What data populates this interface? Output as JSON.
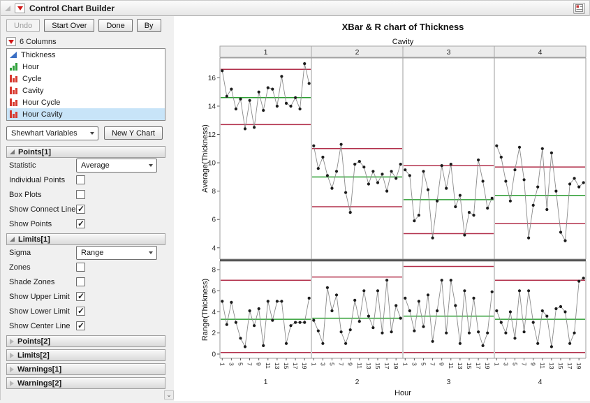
{
  "window": {
    "title": "Control Chart Builder"
  },
  "toolbar": {
    "undo": "Undo",
    "start_over": "Start Over",
    "done": "Done",
    "by": "By"
  },
  "columns_panel": {
    "header": "6 Columns",
    "items": [
      {
        "label": "Thickness",
        "type": "continuous",
        "selected": false
      },
      {
        "label": "Hour",
        "type": "ordinal",
        "selected": false
      },
      {
        "label": "Cycle",
        "type": "nominal",
        "selected": false
      },
      {
        "label": "Cavity",
        "type": "nominal",
        "selected": false
      },
      {
        "label": "Hour Cycle",
        "type": "nominal",
        "selected": false
      },
      {
        "label": "Hour Cavity",
        "type": "nominal",
        "selected": true
      }
    ]
  },
  "controls": {
    "chart_type_dropdown": "Shewhart Variables",
    "new_y_chart_button": "New Y Chart"
  },
  "panels": {
    "points1": {
      "title": "Points[1]",
      "statistic_label": "Statistic",
      "statistic_value": "Average",
      "options": [
        {
          "label": "Individual Points",
          "checked": false
        },
        {
          "label": "Box Plots",
          "checked": false
        },
        {
          "label": "Show Connect Line",
          "checked": true
        },
        {
          "label": "Show Points",
          "checked": true
        }
      ]
    },
    "limits1": {
      "title": "Limits[1]",
      "sigma_label": "Sigma",
      "sigma_value": "Range",
      "options": [
        {
          "label": "Zones",
          "checked": false
        },
        {
          "label": "Shade Zones",
          "checked": false
        },
        {
          "label": "Show Upper Limit",
          "checked": true
        },
        {
          "label": "Show Lower Limit",
          "checked": true
        },
        {
          "label": "Show Center Line",
          "checked": true
        }
      ]
    },
    "collapsed": [
      {
        "title": "Points[2]"
      },
      {
        "title": "Limits[2]"
      },
      {
        "title": "Warnings[1]"
      },
      {
        "title": "Warnings[2]"
      }
    ]
  },
  "chart_data": {
    "type": "line",
    "title": "XBar & R chart of Thickness",
    "group_axis_label": "Cavity",
    "groups": [
      "1",
      "2",
      "3",
      "4"
    ],
    "xlabel": "Hour",
    "x_ticks": [
      1,
      3,
      5,
      7,
      9,
      11,
      13,
      15,
      17,
      19
    ],
    "hours_per_panel": 20,
    "legend": "none",
    "grid": false,
    "colors": {
      "limit": "#b2304b",
      "center": "#2e9e33",
      "point": "#1c1c1c",
      "connect": "#8a8a8a"
    },
    "rows": [
      {
        "ylabel": "Average(Thickness)",
        "ylim": [
          3.2,
          17.4
        ],
        "yticks": [
          4,
          6,
          8,
          10,
          12,
          14,
          16
        ],
        "panels": [
          {
            "group": "1",
            "ucl": 16.6,
            "center": 14.6,
            "lcl": 12.7,
            "values": [
              16.5,
              14.7,
              15.2,
              13.8,
              14.5,
              12.4,
              14.4,
              12.5,
              15.0,
              13.7,
              15.3,
              15.2,
              14.0,
              16.1,
              14.2,
              14.0,
              14.6,
              13.8,
              17.0,
              15.6
            ]
          },
          {
            "group": "2",
            "ucl": 11.0,
            "center": 9.0,
            "lcl": 6.9,
            "values": [
              11.2,
              9.6,
              10.4,
              9.1,
              8.2,
              9.4,
              11.3,
              7.9,
              6.5,
              9.9,
              10.1,
              9.7,
              8.5,
              9.4,
              8.6,
              9.2,
              8.0,
              9.4,
              8.9,
              9.9
            ]
          },
          {
            "group": "3",
            "ucl": 9.8,
            "center": 7.4,
            "lcl": 5.0,
            "values": [
              9.5,
              9.1,
              5.9,
              6.3,
              9.4,
              8.1,
              4.7,
              7.3,
              9.8,
              8.2,
              9.9,
              6.9,
              7.7,
              4.9,
              6.5,
              6.3,
              10.2,
              8.7,
              6.8,
              7.5
            ]
          },
          {
            "group": "4",
            "ucl": 9.7,
            "center": 7.7,
            "lcl": 5.7,
            "values": [
              11.2,
              10.4,
              8.7,
              7.3,
              9.5,
              11.1,
              8.8,
              4.7,
              7.0,
              8.3,
              11.0,
              6.7,
              10.7,
              8.0,
              5.1,
              4.5,
              8.5,
              8.9,
              8.3,
              8.6
            ]
          }
        ]
      },
      {
        "ylabel": "Range(Thickness)",
        "ylim": [
          -0.4,
          8.8
        ],
        "yticks": [
          0,
          2,
          4,
          6,
          8
        ],
        "panels": [
          {
            "group": "1",
            "ucl": 7.0,
            "center": 3.3,
            "lcl": 0.15,
            "values": [
              5.0,
              2.8,
              4.9,
              3.0,
              1.5,
              0.7,
              4.1,
              2.7,
              4.3,
              0.8,
              5.0,
              3.2,
              5.0,
              5.0,
              1.0,
              2.7,
              3.0,
              3.0,
              3.0,
              5.3
            ]
          },
          {
            "group": "2",
            "ucl": 7.3,
            "center": 3.4,
            "lcl": 0.15,
            "values": [
              3.2,
              2.2,
              1.0,
              6.3,
              4.1,
              5.6,
              2.1,
              1.0,
              2.3,
              5.1,
              3.1,
              6.0,
              3.6,
              2.5,
              6.0,
              2.0,
              7.0,
              2.1,
              4.6,
              3.4
            ]
          },
          {
            "group": "3",
            "ucl": 8.3,
            "center": 3.6,
            "lcl": 0.15,
            "values": [
              5.3,
              4.1,
              2.2,
              5.0,
              2.6,
              5.6,
              1.2,
              4.1,
              7.0,
              2.0,
              7.0,
              4.6,
              1.0,
              6.0,
              2.0,
              5.3,
              2.1,
              0.8,
              2.0,
              5.9
            ]
          },
          {
            "group": "4",
            "ucl": 7.0,
            "center": 3.3,
            "lcl": 0.15,
            "values": [
              4.1,
              3.0,
              2.0,
              4.0,
              1.5,
              6.0,
              2.1,
              6.0,
              3.0,
              1.0,
              4.1,
              3.6,
              0.7,
              4.3,
              4.5,
              4.0,
              1.0,
              2.0,
              6.9,
              7.2
            ]
          }
        ]
      }
    ]
  }
}
